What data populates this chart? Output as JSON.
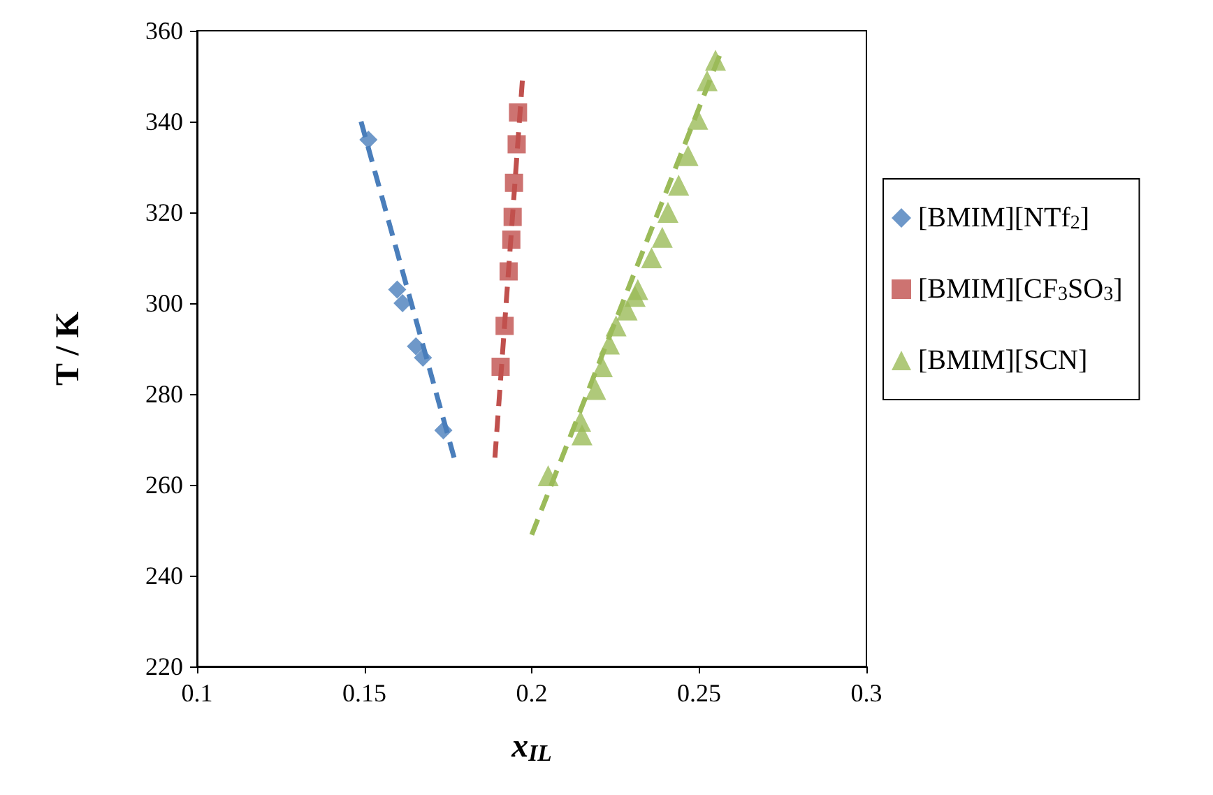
{
  "chart_data": {
    "type": "scatter",
    "xlabel": "x$_{IL}$",
    "ylabel": "T / K",
    "xlim": [
      0.1,
      0.3
    ],
    "xticks": [
      0.1,
      0.15,
      0.2,
      0.25,
      0.3
    ],
    "ylim": [
      220,
      360
    ],
    "yticks": [
      220,
      240,
      260,
      280,
      300,
      320,
      340,
      360
    ],
    "grid": false,
    "legend": "right",
    "series": [
      {
        "name": "[BMIM][NTf$_{2}$]",
        "type": "scatter",
        "marker": "diamond",
        "color": "#4a7ebb",
        "x": [
          0.1512,
          0.1598,
          0.1614,
          0.1654,
          0.1675,
          0.1736
        ],
        "values": [
          336,
          303,
          300,
          290.5,
          288,
          272
        ]
      },
      {
        "name": "[BMIM][CF$_{3}$SO$_{3}$]",
        "type": "scatter",
        "marker": "square",
        "color": "#c0504d",
        "x": [
          0.1959,
          0.1955,
          0.1947,
          0.1943,
          0.1939,
          0.1931,
          0.1919,
          0.1907
        ],
        "values": [
          342,
          335,
          326.5,
          319,
          314,
          307,
          295,
          286
        ]
      },
      {
        "name": "[BMIM][SCN]",
        "type": "scatter",
        "marker": "triangle",
        "color": "#9bbb59",
        "x": [
          0.2549,
          0.2524,
          0.2496,
          0.2467,
          0.2439,
          0.2407,
          0.239,
          0.2358,
          0.2317,
          0.2309,
          0.2285,
          0.2252,
          0.2232,
          0.2211,
          0.2191,
          0.2146,
          0.215,
          0.2049
        ],
        "values": [
          353.5,
          349,
          340.5,
          332.5,
          326,
          320,
          314.5,
          310,
          303,
          301.5,
          298.5,
          295,
          291,
          286,
          281,
          274,
          271,
          262
        ]
      },
      {
        "type": "line",
        "line_style": "dashed",
        "color": "#4a7ebb",
        "x": [
          0.149,
          0.1768
        ],
        "values": [
          340,
          266
        ]
      },
      {
        "type": "line",
        "line_style": "dashed",
        "color": "#c0504d",
        "x": [
          0.189,
          0.1972
        ],
        "values": [
          266,
          349
        ]
      },
      {
        "type": "line",
        "line_style": "dashed",
        "color": "#9bbb59",
        "x": [
          0.2,
          0.2561
        ],
        "values": [
          249,
          354.5
        ]
      }
    ]
  }
}
